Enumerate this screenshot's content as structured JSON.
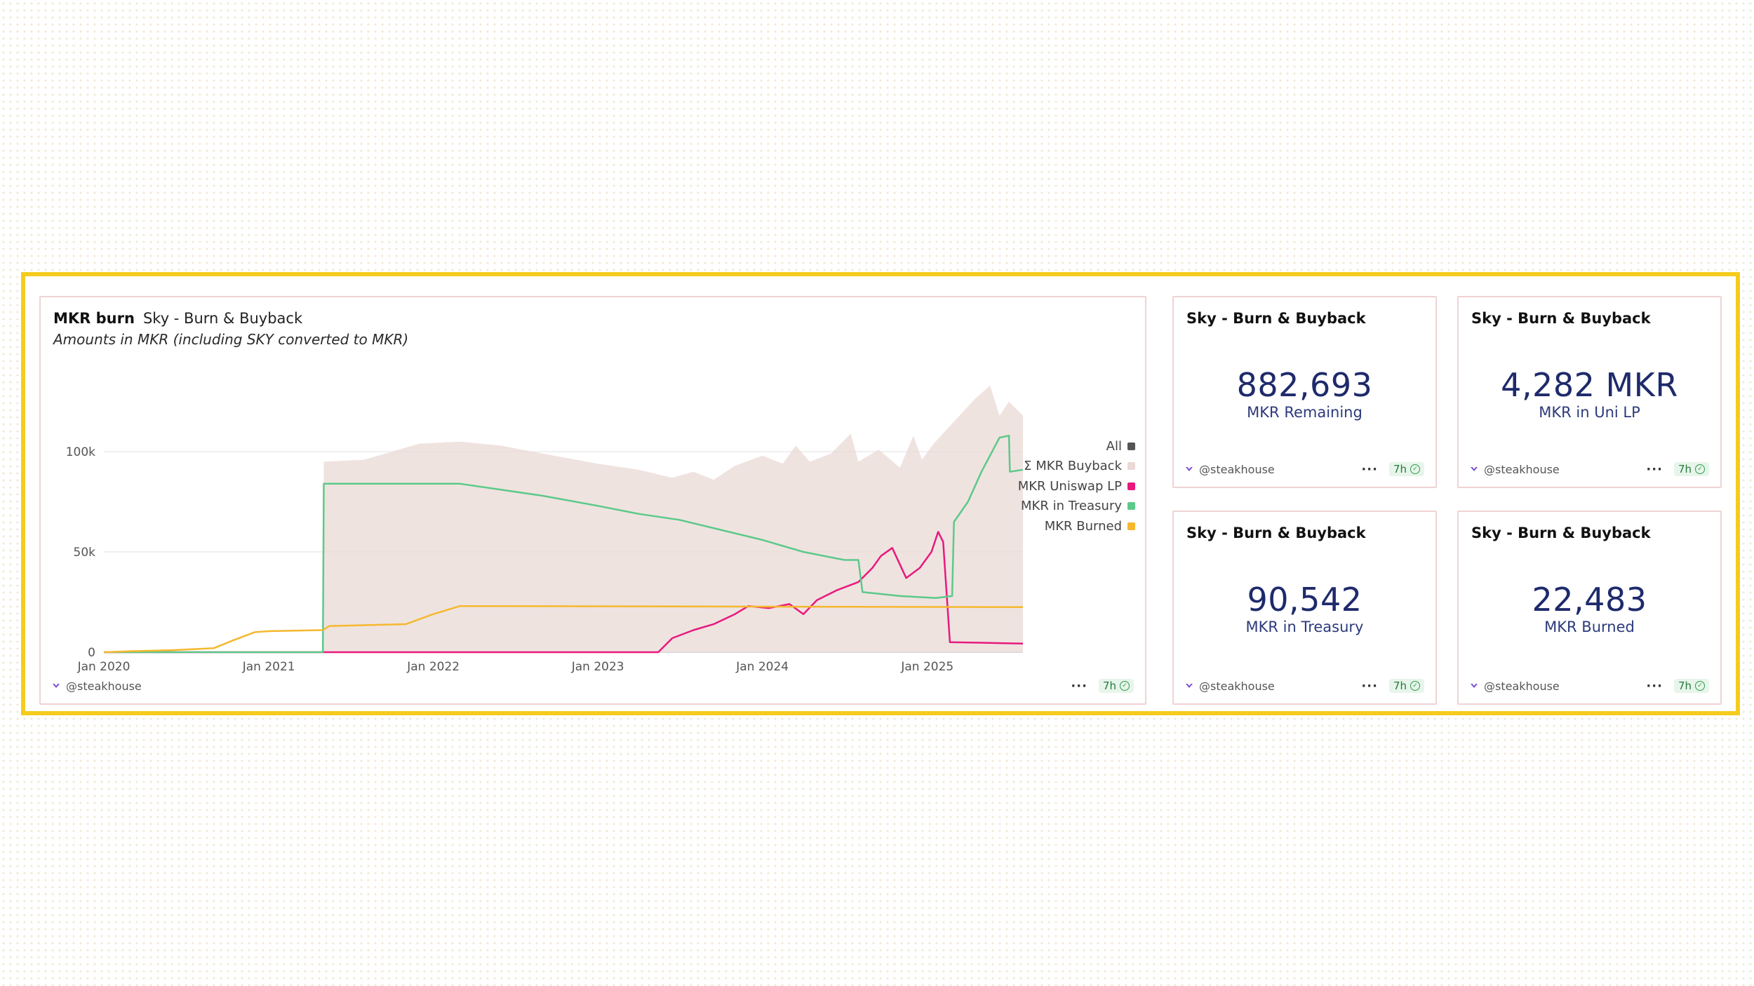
{
  "chart_card": {
    "title": "MKR burn",
    "subtitle_app": "Sky - Burn & Buyback",
    "description": "Amounts in MKR (including SKY converted to MKR)",
    "author": "@steakhouse",
    "more_label": "···",
    "refresh_label": "7h"
  },
  "legend": [
    {
      "label": "All",
      "color": "#555555"
    },
    {
      "label": "Σ MKR Buyback",
      "color": "#ead9d6"
    },
    {
      "label": "MKR Uniswap LP",
      "color": "#e8197d"
    },
    {
      "label": "MKR in Treasury",
      "color": "#5cc98a"
    },
    {
      "label": "MKR Burned",
      "color": "#f5b82e"
    }
  ],
  "counters": [
    {
      "title": "Sky - Burn & Buyback",
      "value": "882,693",
      "label": "MKR Remaining",
      "author": "@steakhouse",
      "more_label": "···",
      "refresh_label": "7h"
    },
    {
      "title": "Sky - Burn & Buyback",
      "value": "4,282 MKR",
      "label": "MKR in Uni LP",
      "author": "@steakhouse",
      "more_label": "···",
      "refresh_label": "7h"
    },
    {
      "title": "Sky - Burn & Buyback",
      "value": "90,542",
      "label": "MKR in Treasury",
      "author": "@steakhouse",
      "more_label": "···",
      "refresh_label": "7h"
    },
    {
      "title": "Sky - Burn & Buyback",
      "value": "22,483",
      "label": "MKR Burned",
      "author": "@steakhouse",
      "more_label": "···",
      "refresh_label": "7h"
    }
  ],
  "chart_data": {
    "type": "area",
    "title": "MKR burn",
    "subtitle": "Amounts in MKR (including SKY converted to MKR)",
    "xlabel": "",
    "ylabel": "",
    "x_ticks": [
      "Jan 2020",
      "Jan 2021",
      "Jan 2022",
      "Jan 2023",
      "Jan 2024",
      "Jan 2025"
    ],
    "y_ticks": [
      0,
      50000,
      100000
    ],
    "y_tick_labels": [
      "0",
      "50k",
      "100k"
    ],
    "xlim": [
      "2020-01-01",
      "2025-08-01"
    ],
    "ylim": [
      0,
      135000
    ],
    "grid": true,
    "legend_position": "right",
    "series": [
      {
        "name": "Σ MKR Buyback",
        "type": "area",
        "color": "#ead9d6",
        "points": [
          [
            "2020-01-01",
            0
          ],
          [
            "2021-05-01",
            0
          ],
          [
            "2021-05-03",
            95000
          ],
          [
            "2021-08-01",
            96000
          ],
          [
            "2021-12-01",
            104000
          ],
          [
            "2022-03-01",
            105000
          ],
          [
            "2022-06-01",
            103000
          ],
          [
            "2022-09-01",
            99000
          ],
          [
            "2023-01-01",
            94000
          ],
          [
            "2023-04-01",
            91000
          ],
          [
            "2023-06-15",
            87000
          ],
          [
            "2023-08-01",
            90000
          ],
          [
            "2023-09-15",
            86000
          ],
          [
            "2023-11-01",
            93000
          ],
          [
            "2024-01-01",
            98000
          ],
          [
            "2024-02-15",
            94000
          ],
          [
            "2024-03-15",
            103000
          ],
          [
            "2024-04-15",
            95000
          ],
          [
            "2024-06-01",
            99000
          ],
          [
            "2024-07-15",
            109000
          ],
          [
            "2024-08-01",
            95000
          ],
          [
            "2024-09-15",
            101000
          ],
          [
            "2024-11-01",
            92000
          ],
          [
            "2024-12-01",
            108000
          ],
          [
            "2024-12-20",
            96000
          ],
          [
            "2025-01-15",
            104000
          ],
          [
            "2025-03-01",
            115000
          ],
          [
            "2025-04-15",
            126000
          ],
          [
            "2025-05-20",
            133000
          ],
          [
            "2025-06-10",
            118000
          ],
          [
            "2025-07-01",
            125000
          ],
          [
            "2025-08-01",
            118000
          ]
        ]
      },
      {
        "name": "MKR Uniswap LP",
        "type": "line",
        "color": "#e8197d",
        "points": [
          [
            "2020-01-01",
            0
          ],
          [
            "2023-05-15",
            0
          ],
          [
            "2023-06-15",
            7000
          ],
          [
            "2023-08-01",
            11000
          ],
          [
            "2023-09-15",
            14000
          ],
          [
            "2023-11-01",
            19000
          ],
          [
            "2023-12-01",
            23000
          ],
          [
            "2024-01-15",
            22000
          ],
          [
            "2024-03-01",
            24000
          ],
          [
            "2024-04-01",
            19000
          ],
          [
            "2024-05-01",
            26000
          ],
          [
            "2024-06-15",
            31000
          ],
          [
            "2024-08-01",
            35000
          ],
          [
            "2024-09-01",
            42000
          ],
          [
            "2024-09-20",
            48000
          ],
          [
            "2024-10-15",
            52000
          ],
          [
            "2024-11-15",
            37000
          ],
          [
            "2024-12-15",
            42000
          ],
          [
            "2025-01-10",
            50000
          ],
          [
            "2025-01-25",
            60000
          ],
          [
            "2025-02-05",
            55000
          ],
          [
            "2025-02-20",
            5000
          ],
          [
            "2025-08-01",
            4300
          ]
        ]
      },
      {
        "name": "MKR in Treasury",
        "type": "line",
        "color": "#5cc98a",
        "points": [
          [
            "2020-01-01",
            0
          ],
          [
            "2021-05-01",
            0
          ],
          [
            "2021-05-03",
            84000
          ],
          [
            "2022-03-01",
            84000
          ],
          [
            "2022-06-01",
            81000
          ],
          [
            "2022-09-01",
            78000
          ],
          [
            "2023-01-01",
            73000
          ],
          [
            "2023-04-01",
            69000
          ],
          [
            "2023-07-01",
            66000
          ],
          [
            "2023-10-01",
            61000
          ],
          [
            "2024-01-01",
            56000
          ],
          [
            "2024-04-01",
            50000
          ],
          [
            "2024-07-01",
            46000
          ],
          [
            "2024-08-01",
            46000
          ],
          [
            "2024-08-10",
            30000
          ],
          [
            "2024-11-01",
            28000
          ],
          [
            "2025-01-20",
            27000
          ],
          [
            "2025-02-25",
            28000
          ],
          [
            "2025-03-01",
            65000
          ],
          [
            "2025-04-01",
            75000
          ],
          [
            "2025-05-01",
            90000
          ],
          [
            "2025-06-10",
            107000
          ],
          [
            "2025-07-01",
            108000
          ],
          [
            "2025-07-03",
            90000
          ],
          [
            "2025-08-01",
            91000
          ]
        ]
      },
      {
        "name": "MKR Burned",
        "type": "line",
        "color": "#f5b82e",
        "points": [
          [
            "2020-01-01",
            0
          ],
          [
            "2020-03-01",
            500
          ],
          [
            "2020-06-01",
            1000
          ],
          [
            "2020-09-01",
            2000
          ],
          [
            "2020-10-15",
            6000
          ],
          [
            "2020-12-01",
            10000
          ],
          [
            "2021-01-01",
            10500
          ],
          [
            "2021-05-01",
            11000
          ],
          [
            "2021-05-15",
            13000
          ],
          [
            "2021-11-01",
            14000
          ],
          [
            "2022-01-01",
            19000
          ],
          [
            "2022-03-01",
            23000
          ],
          [
            "2025-08-01",
            22483
          ]
        ]
      }
    ]
  }
}
